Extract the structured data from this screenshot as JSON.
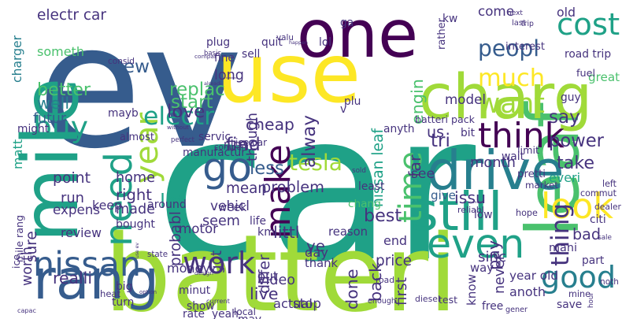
{
  "palette": {
    "background": "#ffffff",
    "purple": "#440154",
    "indigo": "#46337e",
    "blue": "#365c8d",
    "steel": "#277f8e",
    "teal": "#1fa187",
    "green": "#4ac16d",
    "lime": "#a0da39",
    "yellow": "#fde725"
  },
  "words": [
    {
      "text": "car",
      "color": "teal"
    },
    {
      "text": "ev",
      "color": "blue"
    },
    {
      "text": "batteri",
      "color": "lime"
    },
    {
      "text": "use",
      "color": "yellow"
    },
    {
      "text": "one",
      "color": "purple"
    },
    {
      "text": "leaf",
      "color": "green"
    },
    {
      "text": "mile",
      "color": "teal"
    },
    {
      "text": "charg",
      "color": "lime"
    },
    {
      "text": "drive",
      "color": "steel"
    },
    {
      "text": "still",
      "color": "teal"
    },
    {
      "text": "rang",
      "color": "blue"
    },
    {
      "text": "go",
      "color": "blue"
    },
    {
      "text": "make",
      "color": "purple"
    },
    {
      "text": "year",
      "color": "lime"
    },
    {
      "text": "need",
      "color": "teal"
    },
    {
      "text": "even",
      "color": "teal"
    },
    {
      "text": "nissan",
      "color": "blue"
    },
    {
      "text": "cost",
      "color": "teal"
    },
    {
      "text": "think",
      "color": "purple"
    },
    {
      "text": "much",
      "color": "yellow"
    },
    {
      "text": "time",
      "color": "green"
    },
    {
      "text": "look",
      "color": "yellow"
    },
    {
      "text": "peopl",
      "color": "blue"
    },
    {
      "text": "good",
      "color": "steel"
    },
    {
      "text": "work",
      "color": "indigo"
    },
    {
      "text": "buy",
      "color": "teal"
    },
    {
      "text": "want",
      "color": "lime"
    },
    {
      "text": "new",
      "color": "blue"
    },
    {
      "text": "electr",
      "color": "teal"
    },
    {
      "text": "thing",
      "color": "indigo"
    },
    {
      "text": "tesla",
      "color": "lime"
    },
    {
      "text": "electr car",
      "color": "indigo"
    },
    {
      "text": "charger",
      "color": "steel"
    },
    {
      "text": "someth",
      "color": "green"
    },
    {
      "text": "replac",
      "color": "green"
    },
    {
      "text": "cheap",
      "color": "indigo"
    },
    {
      "text": "come",
      "color": "indigo"
    },
    {
      "text": "old",
      "color": "indigo"
    },
    {
      "text": "long",
      "color": "indigo"
    },
    {
      "text": "futur",
      "color": "blue"
    },
    {
      "text": "probabl",
      "color": "indigo"
    },
    {
      "text": "find",
      "color": "indigo"
    },
    {
      "text": "less",
      "color": "blue"
    },
    {
      "text": "problem",
      "color": "indigo"
    },
    {
      "text": "alway",
      "color": "indigo"
    },
    {
      "text": "engin",
      "color": "green"
    },
    {
      "text": "far",
      "color": "indigo"
    },
    {
      "text": "us",
      "color": "indigo"
    },
    {
      "text": "model",
      "color": "indigo"
    },
    {
      "text": "great",
      "color": "green"
    },
    {
      "text": "tri",
      "color": "indigo"
    },
    {
      "text": "say",
      "color": "indigo"
    },
    {
      "text": "power",
      "color": "indigo"
    },
    {
      "text": "take",
      "color": "indigo"
    },
    {
      "text": "better",
      "color": "green"
    },
    {
      "text": "well",
      "color": "steel"
    },
    {
      "text": "matt",
      "color": "teal"
    },
    {
      "text": "love",
      "color": "indigo"
    },
    {
      "text": "start",
      "color": "green"
    },
    {
      "text": "mean",
      "color": "indigo"
    },
    {
      "text": "though",
      "color": "indigo"
    },
    {
      "text": "home",
      "color": "indigo"
    },
    {
      "text": "right",
      "color": "indigo"
    },
    {
      "text": "lot",
      "color": "teal"
    },
    {
      "text": "around",
      "color": "indigo"
    },
    {
      "text": "made",
      "color": "indigo"
    },
    {
      "text": "bought",
      "color": "indigo"
    },
    {
      "text": "nissan leaf",
      "color": "teal"
    },
    {
      "text": "see",
      "color": "indigo"
    },
    {
      "text": "month",
      "color": "indigo"
    },
    {
      "text": "everi",
      "color": "teal"
    },
    {
      "text": "give",
      "color": "blue"
    },
    {
      "text": "issu",
      "color": "indigo"
    },
    {
      "text": "point",
      "color": "indigo"
    },
    {
      "text": "run",
      "color": "indigo"
    },
    {
      "text": "motor",
      "color": "indigo"
    },
    {
      "text": "vehicl",
      "color": "indigo"
    },
    {
      "text": "seem",
      "color": "indigo"
    },
    {
      "text": "littl",
      "color": "indigo"
    },
    {
      "text": "ye",
      "color": "indigo"
    },
    {
      "text": "keep",
      "color": "indigo"
    },
    {
      "text": "best",
      "color": "indigo"
    },
    {
      "text": "bad",
      "color": "indigo"
    },
    {
      "text": "chang",
      "color": "green"
    },
    {
      "text": "mile rang",
      "color": "indigo"
    },
    {
      "text": "expens",
      "color": "indigo"
    },
    {
      "text": "review",
      "color": "indigo"
    },
    {
      "text": "worth",
      "color": "indigo"
    },
    {
      "text": "sure",
      "color": "indigo"
    },
    {
      "text": "got",
      "color": "indigo"
    },
    {
      "text": "km",
      "color": "indigo"
    },
    {
      "text": "day",
      "color": "indigo"
    },
    {
      "text": "reason",
      "color": "indigo"
    },
    {
      "text": "price",
      "color": "indigo"
    },
    {
      "text": "end",
      "color": "indigo"
    },
    {
      "text": "mani",
      "color": "indigo"
    },
    {
      "text": "thank",
      "color": "indigo"
    },
    {
      "text": "differ",
      "color": "indigo"
    },
    {
      "text": "money",
      "color": "indigo"
    },
    {
      "text": "video",
      "color": "indigo"
    },
    {
      "text": "live",
      "color": "indigo"
    },
    {
      "text": "actual",
      "color": "indigo"
    },
    {
      "text": "done",
      "color": "indigo"
    },
    {
      "text": "back",
      "color": "indigo"
    },
    {
      "text": "way",
      "color": "indigo"
    },
    {
      "text": "know",
      "color": "indigo"
    },
    {
      "text": "never",
      "color": "indigo"
    },
    {
      "text": "sinc",
      "color": "indigo"
    },
    {
      "text": "pay",
      "color": "indigo"
    },
    {
      "text": "year old",
      "color": "indigo"
    },
    {
      "text": "anoth",
      "color": "indigo"
    },
    {
      "text": "put",
      "color": "indigo"
    },
    {
      "text": "realli",
      "color": "indigo"
    },
    {
      "text": "stop",
      "color": "indigo"
    },
    {
      "text": "first",
      "color": "indigo"
    },
    {
      "text": "ice car",
      "color": "indigo"
    },
    {
      "text": "manufactur",
      "color": "indigo"
    },
    {
      "text": "batteri pack",
      "color": "indigo"
    },
    {
      "text": "road trip",
      "color": "indigo"
    },
    {
      "text": "interest",
      "color": "indigo"
    },
    {
      "text": "fuel",
      "color": "indigo"
    },
    {
      "text": "guy",
      "color": "indigo"
    },
    {
      "text": "limit",
      "color": "indigo"
    },
    {
      "text": "wait",
      "color": "indigo"
    },
    {
      "text": "pretti",
      "color": "indigo"
    },
    {
      "text": "market",
      "color": "indigo"
    },
    {
      "text": "commut",
      "color": "indigo"
    },
    {
      "text": "left",
      "color": "indigo"
    },
    {
      "text": "dealer",
      "color": "indigo"
    },
    {
      "text": "hope",
      "color": "indigo"
    },
    {
      "text": "citi",
      "color": "indigo"
    },
    {
      "text": "sale",
      "color": "indigo"
    },
    {
      "text": "part",
      "color": "indigo"
    },
    {
      "text": "noth",
      "color": "indigo"
    },
    {
      "text": "hour",
      "color": "indigo"
    },
    {
      "text": "mine",
      "color": "indigo"
    },
    {
      "text": "save",
      "color": "indigo"
    },
    {
      "text": "gener",
      "color": "indigo"
    },
    {
      "text": "free",
      "color": "indigo"
    },
    {
      "text": "diesel",
      "color": "indigo"
    },
    {
      "text": "test",
      "color": "indigo"
    },
    {
      "text": "enough",
      "color": "indigo"
    },
    {
      "text": "design",
      "color": "indigo"
    },
    {
      "text": "minut",
      "color": "indigo"
    },
    {
      "text": "show",
      "color": "indigo"
    },
    {
      "text": "rate",
      "color": "indigo"
    },
    {
      "text": "current",
      "color": "indigo"
    },
    {
      "text": "yeah",
      "color": "indigo"
    },
    {
      "text": "local",
      "color": "indigo"
    },
    {
      "text": "may",
      "color": "indigo"
    },
    {
      "text": "capac",
      "color": "indigo"
    },
    {
      "text": "turn",
      "color": "indigo"
    },
    {
      "text": "big",
      "color": "indigo"
    },
    {
      "text": "heat",
      "color": "indigo"
    },
    {
      "text": "option",
      "color": "indigo"
    },
    {
      "text": "use ev",
      "color": "indigo"
    },
    {
      "text": "state",
      "color": "indigo"
    },
    {
      "text": "week",
      "color": "indigo"
    },
    {
      "text": "compani",
      "color": "indigo"
    },
    {
      "text": "nice",
      "color": "indigo"
    },
    {
      "text": "perfect",
      "color": "indigo"
    },
    {
      "text": "servic",
      "color": "indigo"
    },
    {
      "text": "without",
      "color": "indigo"
    },
    {
      "text": "might",
      "color": "indigo"
    },
    {
      "text": "almost",
      "color": "indigo"
    },
    {
      "text": "mayb",
      "color": "indigo"
    },
    {
      "text": "consid",
      "color": "indigo"
    },
    {
      "text": "plug",
      "color": "indigo"
    },
    {
      "text": "basic",
      "color": "indigo"
    },
    {
      "text": "fine",
      "color": "indigo"
    },
    {
      "text": "quit",
      "color": "indigo"
    },
    {
      "text": "sell",
      "color": "indigo"
    },
    {
      "text": "valu",
      "color": "indigo"
    },
    {
      "text": "happen",
      "color": "indigo"
    },
    {
      "text": "lol",
      "color": "indigo"
    },
    {
      "text": "ga",
      "color": "indigo"
    },
    {
      "text": "kw",
      "color": "indigo"
    },
    {
      "text": "next",
      "color": "indigo"
    },
    {
      "text": "last",
      "color": "indigo"
    },
    {
      "text": "trip",
      "color": "indigo"
    },
    {
      "text": "rather",
      "color": "indigo"
    },
    {
      "text": "compar",
      "color": "indigo"
    },
    {
      "text": "plu",
      "color": "indigo"
    },
    {
      "text": "v",
      "color": "indigo"
    },
    {
      "text": "alreadi",
      "color": "indigo"
    },
    {
      "text": "chademo",
      "color": "indigo"
    },
    {
      "text": "anyth",
      "color": "indigo"
    },
    {
      "text": "bit",
      "color": "indigo"
    },
    {
      "text": "reliabl",
      "color": "indigo"
    },
    {
      "text": "someon",
      "color": "indigo"
    },
    {
      "text": "low",
      "color": "indigo"
    },
    {
      "text": "least",
      "color": "indigo"
    },
    {
      "text": "sold",
      "color": "indigo"
    },
    {
      "text": "life",
      "color": "indigo"
    },
    {
      "text": "road",
      "color": "indigo"
    },
    {
      "text": "ice",
      "color": "indigo"
    }
  ]
}
